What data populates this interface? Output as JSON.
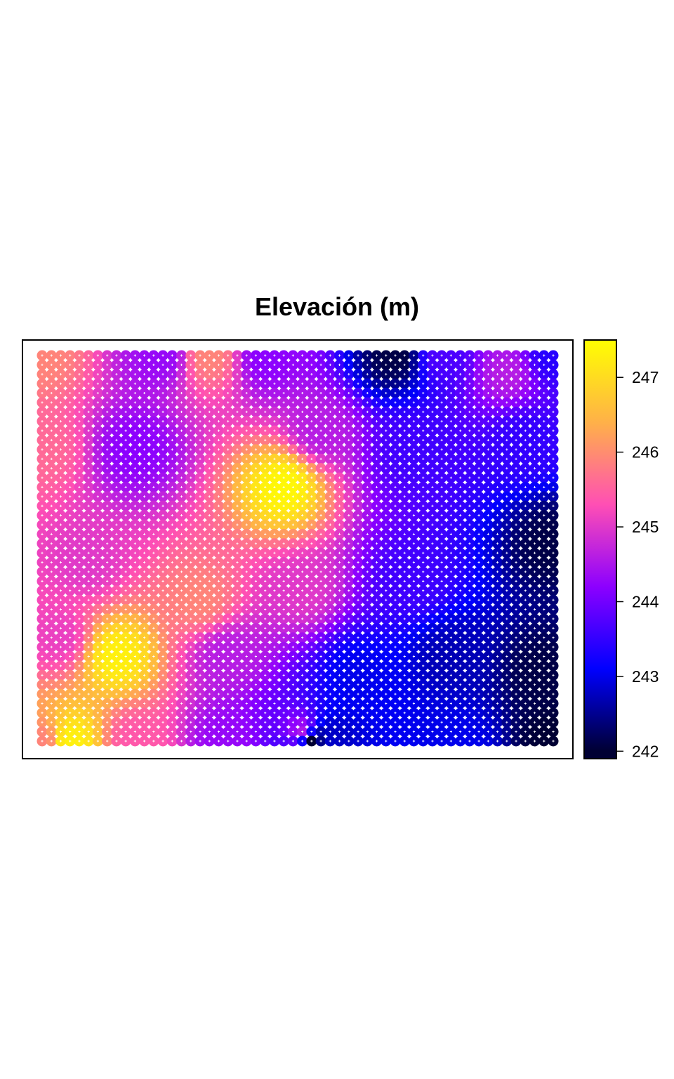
{
  "chart_data": {
    "type": "heatmap",
    "title": "Elevación (m)",
    "xlabel": "",
    "ylabel": "",
    "grid_columns": 56,
    "grid_rows": 42,
    "point_style": "filled circles with white plus marker",
    "colorbar": {
      "placement": "right",
      "range": [
        241.9,
        247.5
      ],
      "ticks": [
        242,
        243,
        244,
        245,
        246,
        247
      ],
      "tick_labels": [
        "242",
        "243",
        "244",
        "245",
        "246",
        "247"
      ],
      "palette": [
        "#000033",
        "#0000FF",
        "#8C00FF",
        "#FF4FB4",
        "#FFB148",
        "#FFFF00"
      ],
      "palette_values": [
        242.0,
        243.1,
        244.2,
        245.3,
        246.4,
        247.5
      ]
    },
    "surface_controls": [
      {
        "col": 0,
        "row": 0,
        "value": 245.9
      },
      {
        "col": 13,
        "row": 0,
        "value": 244.3
      },
      {
        "col": 18,
        "row": 0,
        "value": 245.9
      },
      {
        "col": 24,
        "row": 0,
        "value": 244.2
      },
      {
        "col": 38,
        "row": 0,
        "value": 242.1
      },
      {
        "col": 43,
        "row": 0,
        "value": 243.7
      },
      {
        "col": 50,
        "row": 2,
        "value": 244.6
      },
      {
        "col": 55,
        "row": 0,
        "value": 243.4
      },
      {
        "col": 0,
        "row": 10,
        "value": 245.6
      },
      {
        "col": 10,
        "row": 10,
        "value": 244.2
      },
      {
        "col": 26,
        "row": 14,
        "value": 247.4
      },
      {
        "col": 30,
        "row": 8,
        "value": 244.6
      },
      {
        "col": 40,
        "row": 10,
        "value": 243.6
      },
      {
        "col": 52,
        "row": 9,
        "value": 243.5
      },
      {
        "col": 55,
        "row": 20,
        "value": 242.1
      },
      {
        "col": 5,
        "row": 22,
        "value": 245.0
      },
      {
        "col": 17,
        "row": 26,
        "value": 245.9
      },
      {
        "col": 28,
        "row": 25,
        "value": 245.0
      },
      {
        "col": 40,
        "row": 24,
        "value": 243.6
      },
      {
        "col": 8,
        "row": 32,
        "value": 247.3
      },
      {
        "col": 2,
        "row": 30,
        "value": 245.1
      },
      {
        "col": 20,
        "row": 32,
        "value": 244.6
      },
      {
        "col": 34,
        "row": 34,
        "value": 243.0
      },
      {
        "col": 44,
        "row": 32,
        "value": 242.7
      },
      {
        "col": 54,
        "row": 34,
        "value": 242.1
      },
      {
        "col": 0,
        "row": 41,
        "value": 245.9
      },
      {
        "col": 3,
        "row": 41,
        "value": 247.3
      },
      {
        "col": 10,
        "row": 41,
        "value": 245.4
      },
      {
        "col": 20,
        "row": 41,
        "value": 244.3
      },
      {
        "col": 28,
        "row": 40,
        "value": 244.5
      },
      {
        "col": 29,
        "row": 41,
        "value": 242.0
      },
      {
        "col": 31,
        "row": 41,
        "value": 242.8
      },
      {
        "col": 45,
        "row": 41,
        "value": 243.0
      },
      {
        "col": 55,
        "row": 41,
        "value": 242.0
      }
    ]
  }
}
